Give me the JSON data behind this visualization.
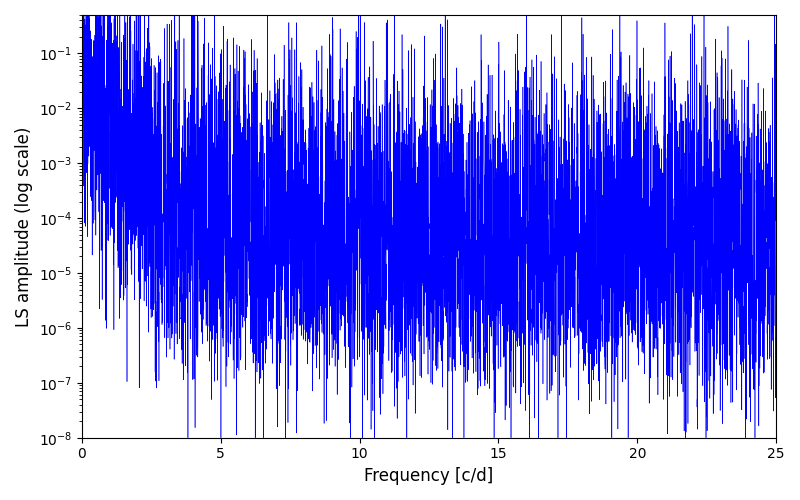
{
  "title": "",
  "xlabel": "Frequency [c/d]",
  "ylabel": "LS amplitude (log scale)",
  "xlim": [
    0,
    25
  ],
  "ylim": [
    1e-08,
    0.5
  ],
  "line_color": "blue",
  "line_width": 0.4,
  "background_color": "#ffffff",
  "seed": 12345,
  "n_points": 8000,
  "freq_max": 25.0,
  "peak_amplitude": 0.35,
  "figsize": [
    8.0,
    5.0
  ],
  "dpi": 100
}
